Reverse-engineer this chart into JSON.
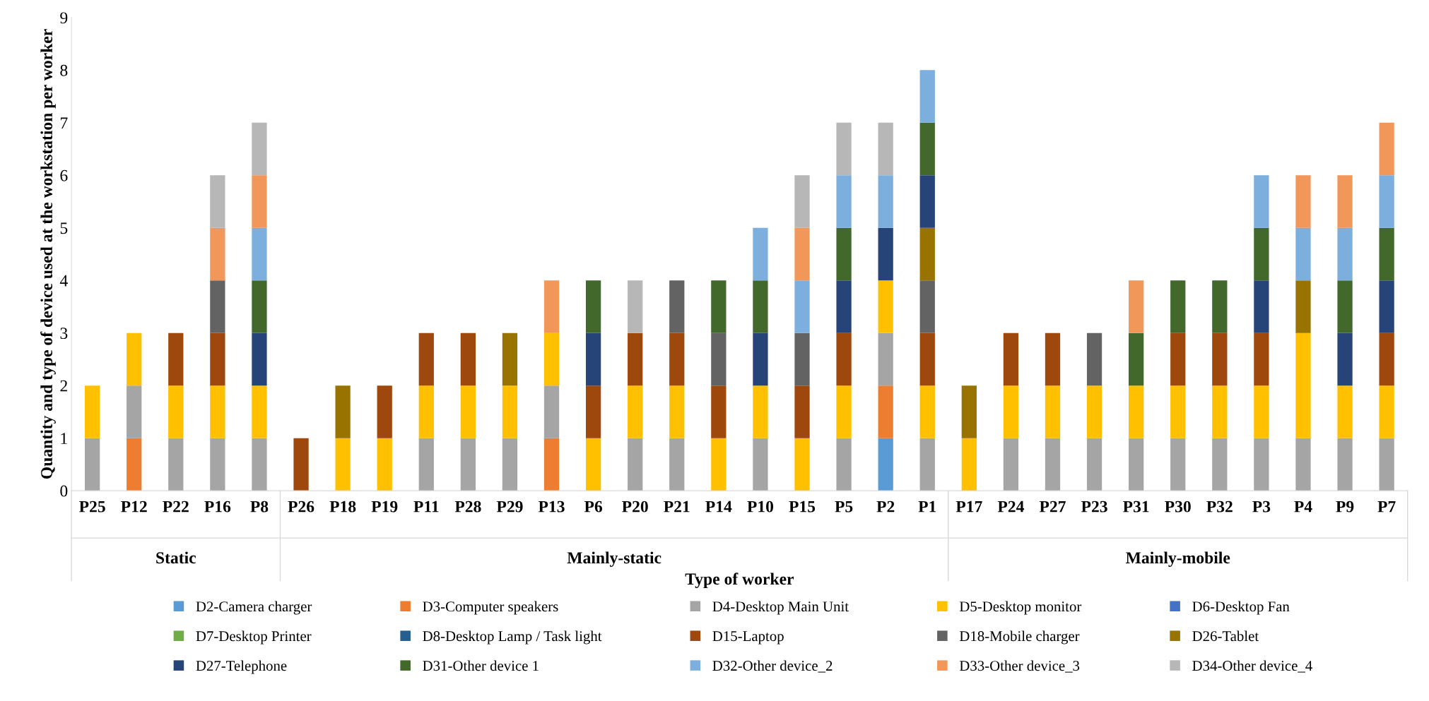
{
  "chart_data": {
    "type": "bar",
    "stacked": true,
    "xlabel": "Type of worker",
    "ylabel": "Quantity and type of device used at the workstation per worker",
    "categories": [
      "P25",
      "P12",
      "P22",
      "P16",
      "P8",
      "P26",
      "P18",
      "P19",
      "P11",
      "P28",
      "P29",
      "P13",
      "P6",
      "P20",
      "P21",
      "P14",
      "P10",
      "P15",
      "P5",
      "P2",
      "P1",
      "P17",
      "P24",
      "P27",
      "P23",
      "P31",
      "P30",
      "P32",
      "P3",
      "P4",
      "P9",
      "P7"
    ],
    "annotations": [
      "Static",
      "Mainly-static",
      "Mainly-mobile"
    ],
    "ylim": [
      0,
      9
    ],
    "yticks": [
      0,
      1,
      2,
      3,
      4,
      5,
      6,
      7,
      8,
      9
    ],
    "grid": false,
    "legend": "bottom",
    "series": [
      {
        "name": "D2-Camera charger",
        "color": "#5b9bd5",
        "values": [
          0,
          0,
          0,
          0,
          0,
          0,
          0,
          0,
          0,
          0,
          0,
          0,
          0,
          0,
          0,
          0,
          0,
          0,
          0,
          1,
          0,
          0,
          0,
          0,
          0,
          0,
          0,
          0,
          0,
          0,
          0,
          0
        ]
      },
      {
        "name": "D3-Computer speakers",
        "color": "#ed7d31",
        "values": [
          0,
          1,
          0,
          0,
          0,
          0,
          0,
          0,
          0,
          0,
          0,
          1,
          0,
          0,
          0,
          0,
          0,
          0,
          0,
          1,
          0,
          0,
          0,
          0,
          0,
          0,
          0,
          0,
          0,
          0,
          0,
          0
        ]
      },
      {
        "name": "D4-Desktop Main Unit",
        "color": "#a5a5a5",
        "values": [
          1,
          1,
          1,
          1,
          1,
          0,
          0,
          0,
          1,
          1,
          1,
          1,
          0,
          1,
          1,
          0,
          1,
          0,
          1,
          1,
          1,
          0,
          1,
          1,
          1,
          1,
          1,
          1,
          1,
          1,
          1,
          1
        ]
      },
      {
        "name": "D5-Desktop monitor",
        "color": "#ffc000",
        "values": [
          1,
          1,
          1,
          1,
          1,
          0,
          1,
          1,
          1,
          1,
          1,
          1,
          1,
          1,
          1,
          1,
          1,
          1,
          1,
          1,
          1,
          1,
          1,
          1,
          1,
          1,
          1,
          1,
          1,
          2,
          1,
          1
        ]
      },
      {
        "name": "D6-Desktop Fan",
        "color": "#4472c4",
        "values": [
          0,
          0,
          0,
          0,
          0,
          0,
          0,
          0,
          0,
          0,
          0,
          0,
          0,
          0,
          0,
          0,
          0,
          0,
          0,
          0,
          0,
          0,
          0,
          0,
          0,
          0,
          0,
          0,
          0,
          0,
          0,
          0
        ]
      },
      {
        "name": "D7-Desktop Printer",
        "color": "#70ad47",
        "values": [
          0,
          0,
          0,
          0,
          0,
          0,
          0,
          0,
          0,
          0,
          0,
          0,
          0,
          0,
          0,
          0,
          0,
          0,
          0,
          0,
          0,
          0,
          0,
          0,
          0,
          0,
          0,
          0,
          0,
          0,
          0,
          0
        ]
      },
      {
        "name": "D8-Desktop Lamp / Task light",
        "color": "#255e91",
        "values": [
          0,
          0,
          0,
          0,
          0,
          0,
          0,
          0,
          0,
          0,
          0,
          0,
          0,
          0,
          0,
          0,
          0,
          0,
          0,
          0,
          0,
          0,
          0,
          0,
          0,
          0,
          0,
          0,
          0,
          0,
          0,
          0
        ]
      },
      {
        "name": "D15-Laptop",
        "color": "#9e480e",
        "values": [
          0,
          0,
          1,
          1,
          0,
          1,
          0,
          1,
          1,
          1,
          0,
          0,
          1,
          1,
          1,
          1,
          0,
          1,
          1,
          0,
          1,
          0,
          1,
          1,
          0,
          0,
          1,
          1,
          1,
          0,
          0,
          1
        ]
      },
      {
        "name": "D18-Mobile charger",
        "color": "#636363",
        "values": [
          0,
          0,
          0,
          1,
          0,
          0,
          0,
          0,
          0,
          0,
          0,
          0,
          0,
          0,
          1,
          1,
          0,
          1,
          0,
          0,
          1,
          0,
          0,
          0,
          1,
          0,
          0,
          0,
          0,
          0,
          0,
          0
        ]
      },
      {
        "name": "D26-Tablet",
        "color": "#997300",
        "values": [
          0,
          0,
          0,
          0,
          0,
          0,
          1,
          0,
          0,
          0,
          1,
          0,
          0,
          0,
          0,
          0,
          0,
          0,
          0,
          0,
          1,
          1,
          0,
          0,
          0,
          0,
          0,
          0,
          0,
          1,
          0,
          0
        ]
      },
      {
        "name": "D27-Telephone",
        "color": "#264478",
        "values": [
          0,
          0,
          0,
          0,
          1,
          0,
          0,
          0,
          0,
          0,
          0,
          0,
          1,
          0,
          0,
          0,
          1,
          0,
          1,
          1,
          1,
          0,
          0,
          0,
          0,
          0,
          0,
          0,
          1,
          0,
          1,
          1
        ]
      },
      {
        "name": "D31-Other device 1",
        "color": "#43682b",
        "values": [
          0,
          0,
          0,
          0,
          1,
          0,
          0,
          0,
          0,
          0,
          0,
          0,
          1,
          0,
          0,
          1,
          1,
          0,
          1,
          0,
          1,
          0,
          0,
          0,
          0,
          1,
          1,
          1,
          1,
          0,
          1,
          1
        ]
      },
      {
        "name": "D32-Other device_2",
        "color": "#7cafdd",
        "values": [
          0,
          0,
          0,
          0,
          1,
          0,
          0,
          0,
          0,
          0,
          0,
          0,
          0,
          0,
          0,
          0,
          1,
          1,
          1,
          1,
          1,
          0,
          0,
          0,
          0,
          0,
          0,
          0,
          1,
          1,
          1,
          1
        ]
      },
      {
        "name": "D33-Other device_3",
        "color": "#f1975a",
        "values": [
          0,
          0,
          0,
          1,
          1,
          0,
          0,
          0,
          0,
          0,
          0,
          1,
          0,
          0,
          0,
          0,
          0,
          1,
          0,
          0,
          0,
          0,
          0,
          0,
          0,
          1,
          0,
          0,
          0,
          1,
          1,
          1
        ]
      },
      {
        "name": "D34-Other device_4",
        "color": "#b7b7b7",
        "values": [
          0,
          0,
          0,
          1,
          1,
          0,
          0,
          0,
          0,
          0,
          0,
          0,
          0,
          1,
          0,
          0,
          0,
          1,
          1,
          1,
          0,
          0,
          0,
          0,
          0,
          0,
          0,
          0,
          0,
          0,
          0,
          0
        ]
      }
    ]
  }
}
